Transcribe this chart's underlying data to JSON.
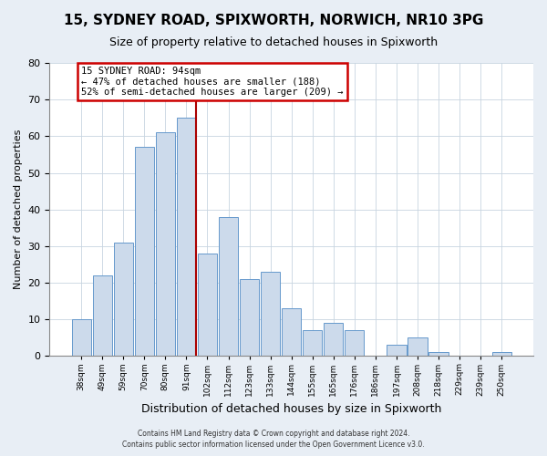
{
  "title": "15, SYDNEY ROAD, SPIXWORTH, NORWICH, NR10 3PG",
  "subtitle": "Size of property relative to detached houses in Spixworth",
  "xlabel": "Distribution of detached houses by size in Spixworth",
  "ylabel": "Number of detached properties",
  "bar_labels": [
    "38sqm",
    "49sqm",
    "59sqm",
    "70sqm",
    "80sqm",
    "91sqm",
    "102sqm",
    "112sqm",
    "123sqm",
    "133sqm",
    "144sqm",
    "155sqm",
    "165sqm",
    "176sqm",
    "186sqm",
    "197sqm",
    "208sqm",
    "218sqm",
    "229sqm",
    "239sqm",
    "250sqm"
  ],
  "bar_values": [
    10,
    22,
    31,
    57,
    61,
    65,
    28,
    38,
    21,
    23,
    13,
    7,
    9,
    7,
    0,
    3,
    5,
    1,
    0,
    0,
    1
  ],
  "bar_color": "#ccdaeb",
  "bar_edge_color": "#6699cc",
  "ylim": [
    0,
    80
  ],
  "yticks": [
    0,
    10,
    20,
    30,
    40,
    50,
    60,
    70,
    80
  ],
  "vline_color": "#aa0000",
  "annotation_title": "15 SYDNEY ROAD: 94sqm",
  "annotation_line1": "← 47% of detached houses are smaller (188)",
  "annotation_line2": "52% of semi-detached houses are larger (209) →",
  "annotation_box_color": "#ffffff",
  "annotation_box_edge": "#cc0000",
  "footer_line1": "Contains HM Land Registry data © Crown copyright and database right 2024.",
  "footer_line2": "Contains public sector information licensed under the Open Government Licence v3.0.",
  "background_color": "#e8eef5",
  "plot_bg_color": "#ffffff",
  "grid_color": "#c8d4e0"
}
